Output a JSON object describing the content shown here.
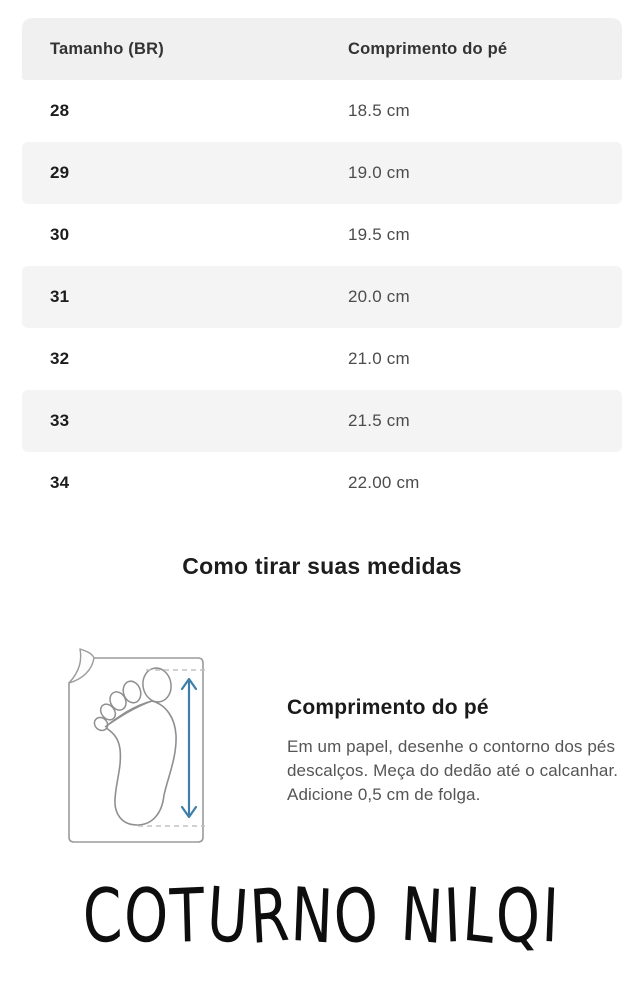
{
  "table": {
    "headers": [
      "Tamanho (BR)",
      "Comprimento do pé"
    ],
    "rows": [
      {
        "size": "28",
        "length": "18.5 cm"
      },
      {
        "size": "29",
        "length": "19.0 cm"
      },
      {
        "size": "30",
        "length": "19.5 cm"
      },
      {
        "size": "31",
        "length": "20.0 cm"
      },
      {
        "size": "32",
        "length": "21.0 cm"
      },
      {
        "size": "33",
        "length": "21.5 cm"
      },
      {
        "size": "34",
        "length": "22.00 cm"
      }
    ]
  },
  "section_title": "Como tirar suas medidas",
  "measure": {
    "heading": "Comprimento do pé",
    "body": "Em um papel, desenhe o contorno dos pés descalços. Meça do dedão até o calcanhar. Adicione 0,5 cm de folga.",
    "diagram_icon": "foot-on-paper-with-length-arrow"
  },
  "brand": {
    "logo_text": "COTURNO NILQI"
  },
  "colors": {
    "header_bg": "#f0f0f0",
    "row_alt_bg": "#f4f4f5",
    "arrow_blue": "#3e7ea8",
    "outline_gray": "#9b9b9b",
    "dashed_gray": "#c2c2c2",
    "text_dark": "#1c1c1c",
    "text_body": "#555555"
  }
}
